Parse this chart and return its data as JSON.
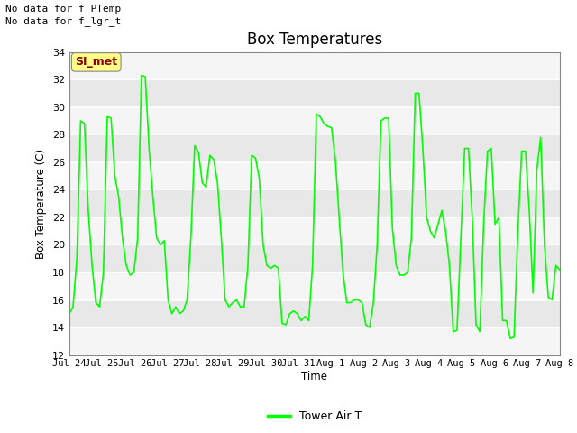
{
  "title": "Box Temperatures",
  "ylabel": "Box Temperature (C)",
  "xlabel": "Time",
  "ylim": [
    12,
    34
  ],
  "yticks": [
    12,
    14,
    16,
    18,
    20,
    22,
    24,
    26,
    28,
    30,
    32,
    34
  ],
  "line_color": "#00FF00",
  "line_width": 1.2,
  "plot_bg_color": "#E8E8E8",
  "band_color": "#D0D0D0",
  "fig_bg": "#FFFFFF",
  "no_data_text1": "No data for f_PTemp",
  "no_data_text2": "No data for f_lgr_t",
  "si_met_label": "SI_met",
  "legend_label": "Tower Air T",
  "x_labels": [
    "Jul 24",
    "Jul 25",
    "Jul 26",
    "Jul 27",
    "Jul 28",
    "Jul 29",
    "Jul 30",
    "Jul 31",
    "Aug 1",
    "Aug 2",
    "Aug 3",
    "Aug 4",
    "Aug 5",
    "Aug 6",
    "Aug 7",
    "Aug 8"
  ],
  "x_values": [
    0,
    1,
    2,
    3,
    4,
    5,
    6,
    7,
    8,
    9,
    10,
    11,
    12,
    13,
    14,
    15
  ],
  "temp_data": [
    15.0,
    15.5,
    19.0,
    29.0,
    28.8,
    22.5,
    18.5,
    15.8,
    15.5,
    18.0,
    29.3,
    29.2,
    25.0,
    23.5,
    20.5,
    18.5,
    17.8,
    18.0,
    20.5,
    32.3,
    32.2,
    27.0,
    23.5,
    20.5,
    20.0,
    20.3,
    16.0,
    15.0,
    15.5,
    15.0,
    15.2,
    16.0,
    20.5,
    27.2,
    26.7,
    24.5,
    24.2,
    26.5,
    26.2,
    24.5,
    20.5,
    16.0,
    15.5,
    15.8,
    16.0,
    15.5,
    15.5,
    18.5,
    26.5,
    26.3,
    24.8,
    20.0,
    18.5,
    18.3,
    18.5,
    18.3,
    14.3,
    14.2,
    15.0,
    15.2,
    15.0,
    14.5,
    14.8,
    14.5,
    18.5,
    29.5,
    29.3,
    28.8,
    28.6,
    28.5,
    26.2,
    22.0,
    18.0,
    15.8,
    15.8,
    16.0,
    16.0,
    15.8,
    14.2,
    14.0,
    15.8,
    20.0,
    29.0,
    29.2,
    29.2,
    21.2,
    18.5,
    17.8,
    17.8,
    18.0,
    20.5,
    31.0,
    31.0,
    27.0,
    22.0,
    21.0,
    20.5,
    21.5,
    22.5,
    21.0,
    18.5,
    13.7,
    13.8,
    20.5,
    27.0,
    27.0,
    22.0,
    14.2,
    13.7,
    21.5,
    26.8,
    27.0,
    21.5,
    22.0,
    14.5,
    14.5,
    13.2,
    13.3,
    21.0,
    26.8,
    26.8,
    22.5,
    16.5,
    25.5,
    27.8,
    20.0,
    16.2,
    16.0,
    18.5,
    18.2
  ]
}
